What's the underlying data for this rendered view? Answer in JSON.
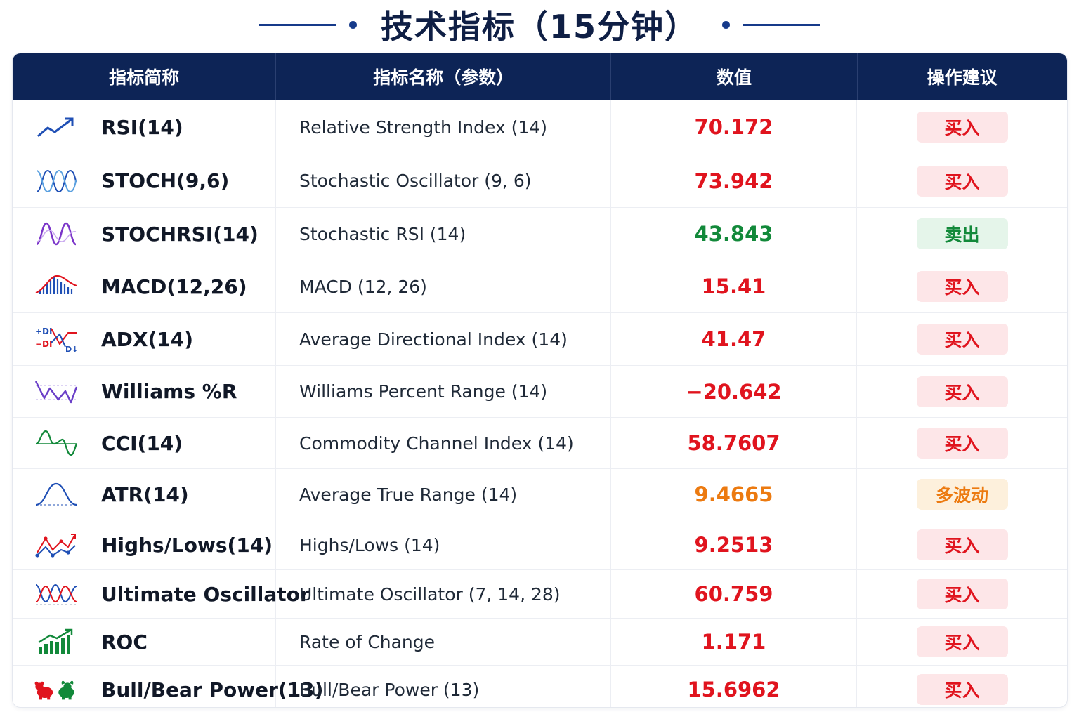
{
  "title": "技术指标（15分钟）",
  "headers": [
    "指标简称",
    "指标名称（参数）",
    "数值",
    "操作建议"
  ],
  "colors": {
    "header_bg": "#0d2456",
    "buy": "#e0141e",
    "sell": "#12893a",
    "volatile": "#ec7a10"
  },
  "rows": [
    {
      "icon": "trend-up-arrow-icon",
      "abbr": "RSI(14)",
      "name": "Relative Strength Index (14)",
      "value": "70.172",
      "action": "买入",
      "tone": "buy"
    },
    {
      "icon": "oscillator-waves-icon",
      "abbr": "STOCH(9,6)",
      "name": "Stochastic Oscillator (9, 6)",
      "value": "73.942",
      "action": "买入",
      "tone": "buy"
    },
    {
      "icon": "stochrsi-wave-icon",
      "abbr": "STOCHRSI(14)",
      "name": "Stochastic RSI (14)",
      "value": "43.843",
      "action": "卖出",
      "tone": "sell"
    },
    {
      "icon": "macd-histogram-icon",
      "abbr": "MACD(12,26)",
      "name": "MACD (12, 26)",
      "value": "15.41",
      "action": "买入",
      "tone": "buy"
    },
    {
      "icon": "adx-directional-icon",
      "abbr": "ADX(14)",
      "name": "Average Directional Index (14)",
      "value": "41.47",
      "action": "买入",
      "tone": "buy"
    },
    {
      "icon": "williams-zigzag-icon",
      "abbr": "Williams %R",
      "name": "Williams Percent Range (14)",
      "value": "−20.642",
      "action": "买入",
      "tone": "buy"
    },
    {
      "icon": "cci-wave-icon",
      "abbr": "CCI(14)",
      "name": "Commodity Channel Index (14)",
      "value": "58.7607",
      "action": "买入",
      "tone": "buy"
    },
    {
      "icon": "atr-bell-curve-icon",
      "abbr": "ATR(14)",
      "name": "Average True Range (14)",
      "value": "9.4665",
      "action": "多波动",
      "tone": "volatile"
    },
    {
      "icon": "highs-lows-icon",
      "abbr": "Highs/Lows(14)",
      "name": "Highs/Lows (14)",
      "value": "9.2513",
      "action": "买入",
      "tone": "buy"
    },
    {
      "icon": "ultimate-oscillator-icon",
      "abbr": "Ultimate Oscillator",
      "name": "Ultimate Oscillator (7, 14, 28)",
      "value": "60.759",
      "action": "买入",
      "tone": "buy"
    },
    {
      "icon": "roc-bars-arrow-icon",
      "abbr": "ROC",
      "name": "Rate of Change",
      "value": "1.171",
      "action": "买入",
      "tone": "buy"
    },
    {
      "icon": "bull-bear-icon",
      "abbr": "Bull/Bear Power(13)",
      "name": "Bull/Bear Power (13)",
      "value": "15.6962",
      "action": "买入",
      "tone": "buy"
    }
  ]
}
